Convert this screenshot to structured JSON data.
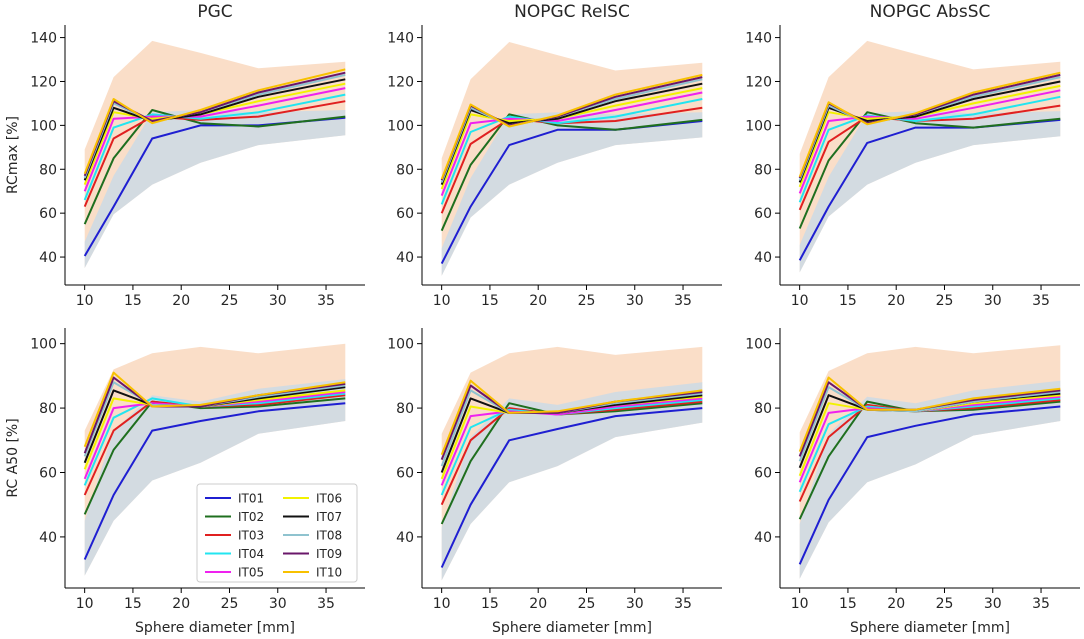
{
  "chart_data": {
    "type": "line",
    "layout": "2x3 grid of panels",
    "x": [
      10,
      13,
      17,
      22,
      28,
      37
    ],
    "xlabel": "Sphere diameter [mm]",
    "xlim": [
      9,
      38
    ],
    "xticks": [
      10,
      15,
      20,
      25,
      30,
      35
    ],
    "columns": [
      "PGC",
      "NOPGC RelSC",
      "NOPGC AbsSC"
    ],
    "rows": [
      {
        "ylabel": "RCmax [%]",
        "ylim": [
          30,
          143
        ],
        "yticks": [
          40,
          60,
          80,
          100,
          120,
          140
        ]
      },
      {
        "ylabel": "RC A50 [%]",
        "ylim": [
          26,
          103
        ],
        "yticks": [
          40,
          60,
          80,
          100
        ]
      }
    ],
    "series_names": [
      "IT01",
      "IT02",
      "IT03",
      "IT04",
      "IT05",
      "IT06",
      "IT07",
      "IT08",
      "IT09",
      "IT10"
    ],
    "series_colors": [
      "#1f1fd1",
      "#1f6f1f",
      "#e02020",
      "#22e5f0",
      "#ef22ef",
      "#f2f200",
      "#111111",
      "#8fc3cf",
      "#6a176a",
      "#f8c100"
    ],
    "band_colors": {
      "upper": "#f9d8be",
      "lower": "#c5d9ea",
      "overlap": "#cfc9c4"
    },
    "legend": {
      "location": "lower-right of bottom-left panel",
      "columns": 2
    },
    "panels": [
      {
        "title": "PGC",
        "row": 0,
        "col": 0,
        "series": [
          [
            40.5,
            63,
            94,
            100,
            100,
            103.5
          ],
          [
            55,
            85,
            107,
            101,
            99.5,
            104
          ],
          [
            63,
            94,
            104,
            102.5,
            104,
            111
          ],
          [
            66,
            99,
            105,
            103,
            106,
            114
          ],
          [
            70,
            103,
            104,
            104,
            109,
            117
          ],
          [
            73,
            106,
            103,
            105,
            111,
            119
          ],
          [
            75,
            108,
            102,
            105,
            113,
            121
          ],
          [
            76,
            110,
            102,
            106,
            114,
            123
          ],
          [
            77,
            111,
            102,
            106,
            115,
            124
          ],
          [
            78,
            112,
            101,
            107,
            116,
            125.5
          ]
        ],
        "upper_band": [
          [
            35,
            59.5,
            73,
            83,
            91,
            95.5
          ],
          [
            89,
            122,
            138.5,
            133,
            126,
            129
          ]
        ],
        "lower_band": [
          [
            35,
            59.5,
            73,
            83,
            91,
            95.5
          ],
          [
            47,
            77,
            106,
            107,
            106,
            107
          ]
        ]
      },
      {
        "title": "NOPGC RelSC",
        "row": 0,
        "col": 1,
        "series": [
          [
            37,
            63,
            91,
            98,
            98,
            102
          ],
          [
            52,
            82,
            105,
            100,
            98,
            102.5
          ],
          [
            60,
            91.5,
            103,
            101,
            102,
            108
          ],
          [
            64,
            97,
            104,
            101,
            104,
            112
          ],
          [
            68,
            101,
            103,
            102,
            107,
            115
          ],
          [
            71,
            105,
            102,
            103,
            109,
            117
          ],
          [
            73,
            107,
            101,
            103,
            111,
            119
          ],
          [
            74,
            108,
            100,
            104,
            112,
            121
          ],
          [
            75,
            109,
            100,
            104,
            113,
            122
          ],
          [
            75.5,
            109.5,
            99.5,
            104.5,
            114,
            123
          ]
        ],
        "upper_band": [
          [
            31.5,
            58,
            73,
            83,
            91,
            94.5
          ],
          [
            85,
            121,
            138,
            132,
            125,
            128.5
          ]
        ],
        "lower_band": [
          [
            31.5,
            58,
            73,
            83,
            91,
            94.5
          ],
          [
            44,
            76,
            105,
            106,
            105,
            106
          ]
        ]
      },
      {
        "title": "NOPGC AbsSC",
        "row": 0,
        "col": 2,
        "series": [
          [
            38.5,
            63,
            92,
            99,
            99,
            102.5
          ],
          [
            53,
            84,
            106,
            101,
            99,
            103
          ],
          [
            61.5,
            92.5,
            104,
            102,
            103,
            109
          ],
          [
            65,
            98,
            104.5,
            102,
            105,
            113
          ],
          [
            69,
            102,
            104,
            103,
            108,
            116
          ],
          [
            72,
            106,
            103,
            104,
            110,
            118
          ],
          [
            74,
            108,
            102,
            104,
            112,
            120
          ],
          [
            75,
            109,
            101,
            105,
            113,
            122
          ],
          [
            76,
            110,
            101,
            105,
            114,
            123
          ],
          [
            76.5,
            110.5,
            100.5,
            105.5,
            115,
            124
          ]
        ],
        "upper_band": [
          [
            33,
            58.5,
            73,
            83,
            91,
            95
          ],
          [
            87,
            122,
            138.5,
            132.5,
            125.5,
            129
          ]
        ],
        "lower_band": [
          [
            33,
            58.5,
            73,
            83,
            91,
            95
          ],
          [
            45.5,
            76.5,
            105.5,
            106.5,
            105.5,
            106.5
          ]
        ]
      },
      {
        "title": "",
        "row": 1,
        "col": 0,
        "series": [
          [
            33,
            53,
            73,
            76,
            79,
            81.5
          ],
          [
            47,
            67,
            82,
            80,
            80.5,
            83
          ],
          [
            53,
            73,
            82,
            80.5,
            81,
            84
          ],
          [
            56,
            77,
            83,
            80.5,
            81.5,
            84.5
          ],
          [
            58,
            80,
            81.5,
            80.5,
            82,
            85
          ],
          [
            61,
            83,
            81,
            80.5,
            82.5,
            85.5
          ],
          [
            63,
            85.5,
            81,
            80.5,
            83,
            86.5
          ],
          [
            65,
            88,
            81,
            80.5,
            83.5,
            87
          ],
          [
            66,
            89.5,
            80.5,
            80.5,
            84,
            87.5
          ],
          [
            68,
            91,
            80.5,
            81,
            84,
            88
          ]
        ],
        "upper_band": [
          [
            28,
            45,
            57.5,
            63,
            72,
            76
          ],
          [
            73,
            92,
            97,
            99,
            97,
            100
          ]
        ],
        "lower_band": [
          [
            28,
            45,
            57.5,
            63,
            72,
            76
          ],
          [
            45,
            73,
            84,
            82,
            86,
            89
          ]
        ]
      },
      {
        "title": "",
        "row": 1,
        "col": 1,
        "series": [
          [
            30.5,
            50,
            70,
            73.5,
            77.5,
            80
          ],
          [
            44,
            63.5,
            81.5,
            78,
            79,
            81.5
          ],
          [
            50,
            70,
            80,
            78,
            79.5,
            82
          ],
          [
            53,
            74,
            79.5,
            78,
            80,
            82.5
          ],
          [
            56,
            77.5,
            79,
            78,
            80.5,
            83
          ],
          [
            58,
            80.5,
            78.5,
            78.5,
            81,
            83.5
          ],
          [
            60,
            83,
            78.5,
            78.5,
            81,
            84
          ],
          [
            62,
            85.5,
            78.5,
            78.5,
            81.5,
            84.5
          ],
          [
            64,
            87,
            78.5,
            78.5,
            82,
            85
          ],
          [
            65.5,
            88.5,
            78.5,
            79,
            82,
            85.5
          ]
        ],
        "upper_band": [
          [
            26.5,
            44,
            57,
            62,
            71,
            75.5
          ],
          [
            72,
            91,
            97,
            99,
            96.5,
            99
          ]
        ],
        "lower_band": [
          [
            26.5,
            44,
            57,
            62,
            71,
            75.5
          ],
          [
            43,
            71,
            83,
            81,
            85,
            88
          ]
        ]
      },
      {
        "title": "",
        "row": 1,
        "col": 2,
        "series": [
          [
            31.5,
            51.5,
            71,
            74.5,
            78,
            80.5
          ],
          [
            45.5,
            65,
            82,
            79,
            79.5,
            82
          ],
          [
            51,
            71,
            81,
            79,
            80,
            82.5
          ],
          [
            54,
            75,
            80.5,
            79,
            80.5,
            83
          ],
          [
            57,
            78.5,
            80,
            79,
            81,
            83.5
          ],
          [
            59,
            81.5,
            79.5,
            79,
            81.5,
            84
          ],
          [
            61.5,
            84,
            79.5,
            79,
            82,
            84.5
          ],
          [
            63.5,
            86.5,
            79.5,
            79,
            82,
            85
          ],
          [
            65,
            88,
            79.5,
            79.5,
            82.5,
            85.5
          ],
          [
            66.5,
            89.5,
            79.5,
            79.5,
            83,
            86
          ]
        ],
        "upper_band": [
          [
            27,
            44.5,
            57,
            62.5,
            71.5,
            76
          ],
          [
            72.5,
            91.5,
            97,
            99,
            97,
            99.5
          ]
        ],
        "lower_band": [
          [
            27,
            44.5,
            57,
            62.5,
            71.5,
            76
          ],
          [
            44,
            72,
            83.5,
            81.5,
            85.5,
            88.5
          ]
        ]
      }
    ]
  }
}
